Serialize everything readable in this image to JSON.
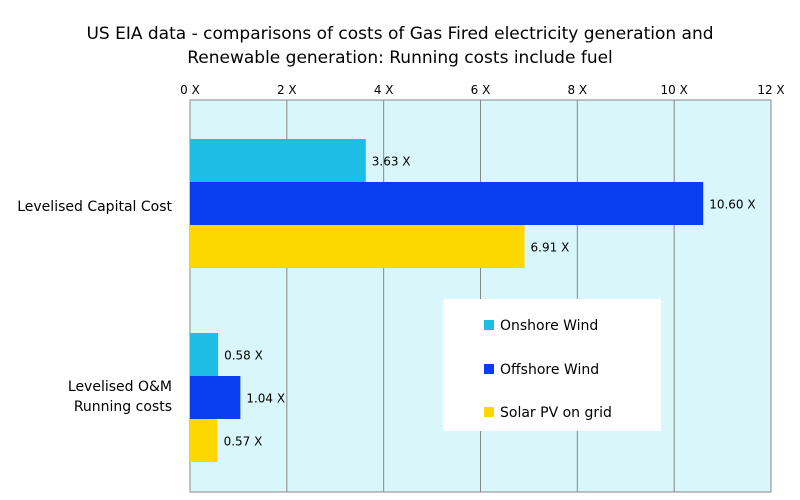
{
  "chart_data": {
    "type": "bar",
    "orientation": "horizontal",
    "title_lines": [
      "US  EIA data - comparisons of costs of Gas Fired electricity generation and",
      "Renewable generation:  Running costs include fuel"
    ],
    "xlim": [
      0,
      12
    ],
    "x_ticks": [
      0,
      2,
      4,
      6,
      8,
      10,
      12
    ],
    "x_tick_labels": [
      "0 X",
      "2 X",
      "4 X",
      "6 X",
      "8 X",
      "10 X",
      "12 X"
    ],
    "x_axis_position": "top",
    "grid": true,
    "categories": [
      {
        "label": [
          "Levelised Capital Cost"
        ]
      },
      {
        "label": [
          "Levelised O&M",
          "Running costs"
        ]
      }
    ],
    "series": [
      {
        "name": "Onshore Wind",
        "color": "#1ebde6",
        "values": [
          3.63,
          0.58
        ],
        "labels": [
          "3.63 X",
          "0.58 X"
        ]
      },
      {
        "name": "Offshore Wind",
        "color": "#0a3cf0",
        "values": [
          10.6,
          1.04
        ],
        "labels": [
          "10.60 X",
          "1.04 X"
        ]
      },
      {
        "name": "Solar PV on grid",
        "color": "#fcd800",
        "values": [
          6.91,
          0.57
        ],
        "labels": [
          "6.91 X",
          "0.57 X"
        ]
      }
    ],
    "legend_position": "bottom-right-inside",
    "plot_background": "#d9f7fb",
    "grid_color": "#888888"
  }
}
